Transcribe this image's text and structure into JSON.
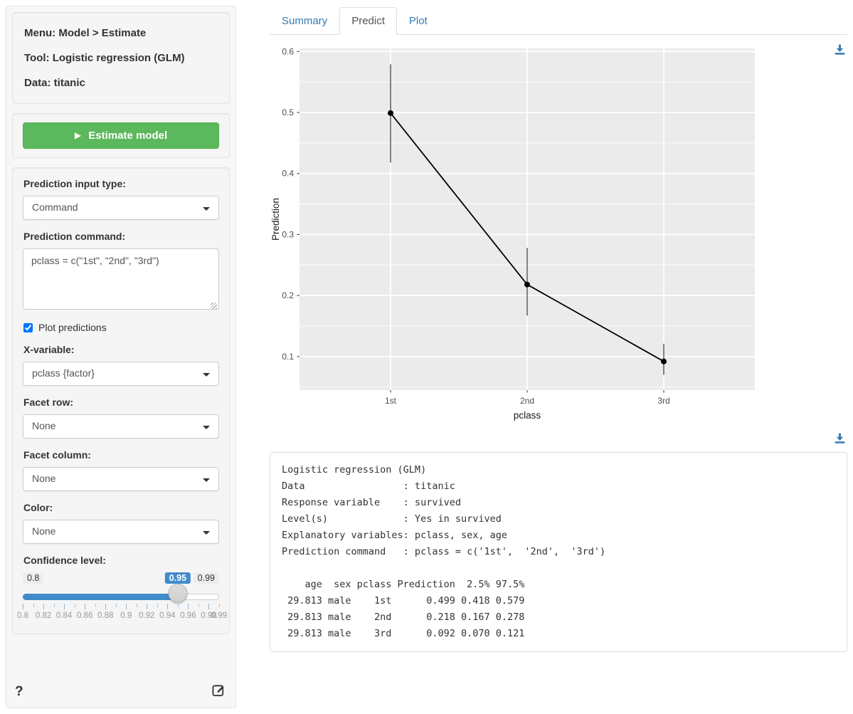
{
  "sidebar": {
    "header": {
      "menu": "Menu: Model > Estimate",
      "tool": "Tool: Logistic regression (GLM)",
      "data": "Data: titanic"
    },
    "estimate_button": {
      "play_icon": "▶",
      "label": "Estimate model"
    },
    "fields": {
      "input_type_label": "Prediction input type:",
      "input_type_value": "Command",
      "command_label": "Prediction command:",
      "command_value": "pclass = c(\"1st\", \"2nd\", \"3rd\")",
      "plot_predictions_label": "Plot predictions",
      "plot_predictions_checked": "checked",
      "xvar_label": "X-variable:",
      "xvar_value": "pclass {factor}",
      "facet_row_label": "Facet row:",
      "facet_row_value": "None",
      "facet_col_label": "Facet column:",
      "facet_col_value": "None",
      "color_label": "Color:",
      "color_value": "None",
      "conf_label": "Confidence level:"
    },
    "slider": {
      "min": 0.8,
      "max": 0.99,
      "value": 0.95,
      "min_label": "0.8",
      "value_label": "0.95",
      "max_label": "0.99",
      "tick_step": 0.01,
      "tick_values": [
        0.8,
        0.82,
        0.84,
        0.86,
        0.88,
        0.9,
        0.92,
        0.94,
        0.96,
        0.98,
        0.99
      ],
      "tick_labels": [
        "0.8",
        "0.82",
        "0.84",
        "0.86",
        "0.88",
        "0.9",
        "0.92",
        "0.94",
        "0.96",
        "0.98",
        "0.99"
      ]
    },
    "help_icon": "?"
  },
  "tabs": [
    {
      "label": "Summary",
      "active": false
    },
    {
      "label": "Predict",
      "active": true
    },
    {
      "label": "Plot",
      "active": false
    }
  ],
  "chart_data": {
    "type": "line",
    "x_categories": [
      "1st",
      "2nd",
      "3rd"
    ],
    "series": [
      {
        "name": "Prediction",
        "values": [
          0.499,
          0.218,
          0.092
        ],
        "ci_low": [
          0.418,
          0.167,
          0.07
        ],
        "ci_high": [
          0.579,
          0.278,
          0.121
        ]
      }
    ],
    "xlabel": "pclass",
    "ylabel": "Prediction",
    "y_ticks": [
      0.1,
      0.2,
      0.3,
      0.4,
      0.5,
      0.6
    ],
    "ylim": [
      0.045,
      0.605
    ],
    "grid": true,
    "legend": "none",
    "panel_bg": "#ebebeb",
    "grid_color": "#ffffff",
    "point_color": "#000000",
    "errorbar_color": "#333333"
  },
  "output": {
    "text": "Logistic regression (GLM)\nData                 : titanic\nResponse variable    : survived\nLevel(s)             : Yes in survived\nExplanatory variables: pclass, sex, age\nPrediction command   : pclass = c('1st',  '2nd',  '3rd')\n\n    age  sex pclass Prediction  2.5% 97.5%\n 29.813 male    1st      0.499 0.418 0.579\n 29.813 male    2nd      0.218 0.167 0.278\n 29.813 male    3rd      0.092 0.070 0.121"
  },
  "colors": {
    "accent_blue": "#428bca",
    "link_blue": "#337ab7",
    "success_green": "#5cb85c",
    "panel_gray": "#ebebeb"
  }
}
